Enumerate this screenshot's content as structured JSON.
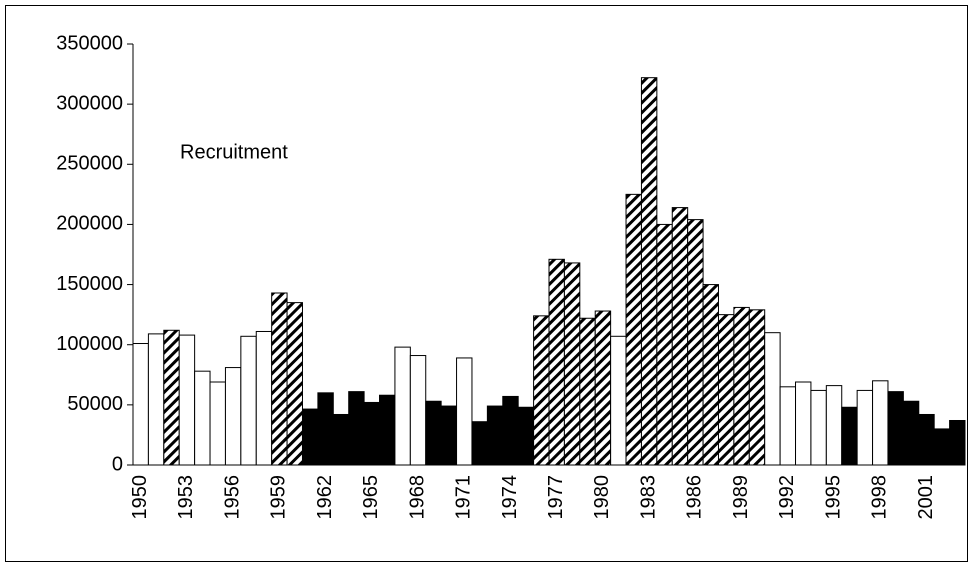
{
  "chart_data": {
    "type": "bar",
    "annotation": "Recruitment",
    "categories": [
      "1950",
      null,
      null,
      "1953",
      null,
      null,
      "1956",
      null,
      null,
      "1959",
      null,
      null,
      "1962",
      null,
      null,
      "1965",
      null,
      null,
      "1968",
      null,
      null,
      "1971",
      null,
      null,
      "1974",
      null,
      null,
      "1977",
      null,
      null,
      "1980",
      null,
      null,
      "1983",
      null,
      null,
      "1986",
      null,
      null,
      "1989",
      null,
      null,
      "1992",
      null,
      null,
      "1995",
      null,
      null,
      "1998",
      null,
      null,
      "2001",
      null,
      null
    ],
    "values": [
      101000,
      109000,
      112000,
      108000,
      78000,
      69000,
      81000,
      107000,
      111000,
      143000,
      135000,
      46500,
      60000,
      42000,
      61000,
      52000,
      58000,
      98000,
      91000,
      53000,
      49000,
      89000,
      36000,
      49000,
      57000,
      48000,
      124000,
      171000,
      168000,
      122000,
      128000,
      107000,
      225000,
      322000,
      200000,
      214000,
      204000,
      150000,
      125000,
      131000,
      129000,
      110000,
      65000,
      69000,
      62000,
      66000,
      48000,
      62000,
      70000,
      61000,
      53000,
      42000,
      30000,
      37000
    ],
    "fills": [
      "white",
      "white",
      "hatch",
      "white",
      "white",
      "white",
      "white",
      "white",
      "white",
      "hatch",
      "hatch",
      "black",
      "black",
      "black",
      "black",
      "black",
      "black",
      "white",
      "white",
      "black",
      "black",
      "white",
      "black",
      "black",
      "black",
      "black",
      "hatch",
      "hatch",
      "hatch",
      "hatch",
      "hatch",
      "white",
      "hatch",
      "hatch",
      "hatch",
      "hatch",
      "hatch",
      "hatch",
      "hatch",
      "hatch",
      "hatch",
      "white",
      "white",
      "white",
      "white",
      "white",
      "black",
      "white",
      "white",
      "black",
      "black",
      "black",
      "black",
      "black"
    ],
    "ylim": [
      0,
      350000
    ],
    "yticks": [
      0,
      50000,
      100000,
      150000,
      200000,
      250000,
      300000,
      350000
    ]
  }
}
